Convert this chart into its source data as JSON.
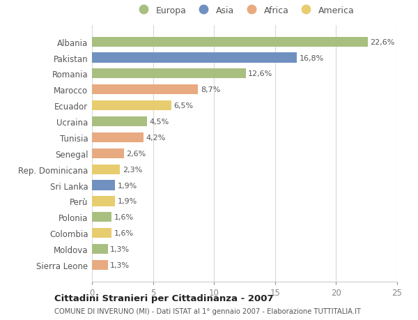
{
  "countries": [
    "Albania",
    "Pakistan",
    "Romania",
    "Marocco",
    "Ecuador",
    "Ucraina",
    "Tunisia",
    "Senegal",
    "Rep. Dominicana",
    "Sri Lanka",
    "Perù",
    "Polonia",
    "Colombia",
    "Moldova",
    "Sierra Leone"
  ],
  "values": [
    22.6,
    16.8,
    12.6,
    8.7,
    6.5,
    4.5,
    4.2,
    2.6,
    2.3,
    1.9,
    1.9,
    1.6,
    1.6,
    1.3,
    1.3
  ],
  "labels": [
    "22,6%",
    "16,8%",
    "12,6%",
    "8,7%",
    "6,5%",
    "4,5%",
    "4,2%",
    "2,6%",
    "2,3%",
    "1,9%",
    "1,9%",
    "1,6%",
    "1,6%",
    "1,3%",
    "1,3%"
  ],
  "continents": [
    "Europa",
    "Asia",
    "Europa",
    "Africa",
    "America",
    "Europa",
    "Africa",
    "Africa",
    "America",
    "Asia",
    "America",
    "Europa",
    "America",
    "Europa",
    "Africa"
  ],
  "colors": {
    "Europa": "#a8bf80",
    "Asia": "#7090c0",
    "Africa": "#e8aa80",
    "America": "#e8cc70"
  },
  "legend_order": [
    "Europa",
    "Asia",
    "Africa",
    "America"
  ],
  "xlim": [
    0,
    25
  ],
  "xticks": [
    0,
    5,
    10,
    15,
    20,
    25
  ],
  "title": "Cittadini Stranieri per Cittadinanza - 2007",
  "subtitle": "COMUNE DI INVERUNO (MI) - Dati ISTAT al 1° gennaio 2007 - Elaborazione TUTTITALIA.IT",
  "background_color": "#ffffff",
  "grid_color": "#d8d8d8"
}
